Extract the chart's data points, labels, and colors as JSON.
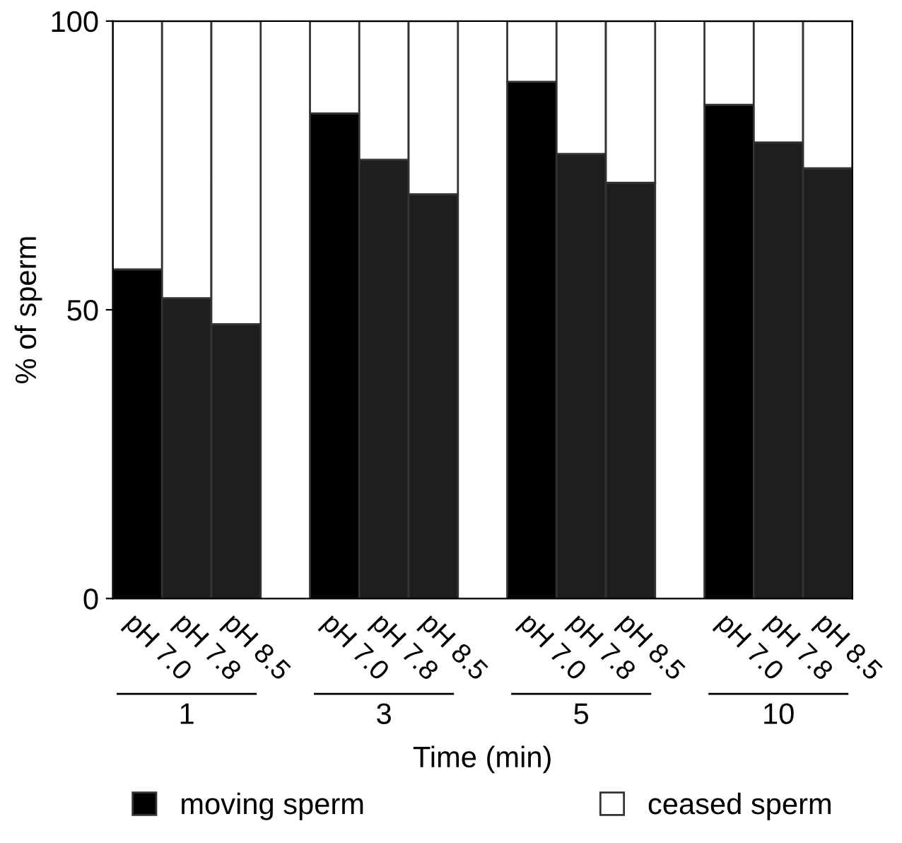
{
  "chart_data": {
    "type": "bar",
    "stacked": true,
    "categories": [
      "pH 7.0",
      "pH 7.8",
      "pH 8.5",
      null,
      "pH 7.0",
      "pH 7.8",
      "pH 8.5",
      null,
      "pH 7.0",
      "pH 7.8",
      "pH 8.5",
      null,
      "pH 7.0",
      "pH 7.8",
      "pH 8.5"
    ],
    "series": [
      {
        "name": "moving sperm",
        "color": "#000000",
        "colors": [
          "#000000",
          "#1e1e1e",
          "#1e1e1e",
          null,
          "#000000",
          "#1e1e1e",
          "#1e1e1e",
          null,
          "#000000",
          "#1e1e1e",
          "#1e1e1e",
          null,
          "#000000",
          "#1e1e1e",
          "#1e1e1e"
        ],
        "values": [
          57,
          52,
          47.5,
          null,
          84,
          76,
          70,
          null,
          89.5,
          77,
          72,
          null,
          85.5,
          79,
          74.5
        ]
      },
      {
        "name": "ceased sperm",
        "color": "#ffffff",
        "values": [
          43,
          48,
          52.5,
          null,
          16,
          24,
          30,
          null,
          10.5,
          23,
          28,
          null,
          14.5,
          21,
          25.5
        ]
      }
    ],
    "ylim": [
      0,
      100
    ],
    "yticks": [
      0,
      50,
      100
    ],
    "ylabel": "% of sperm",
    "xlabel": "Time (min)",
    "annotations": [
      "1",
      "3",
      "5",
      "10"
    ],
    "grid": false,
    "legend": "bottom"
  }
}
